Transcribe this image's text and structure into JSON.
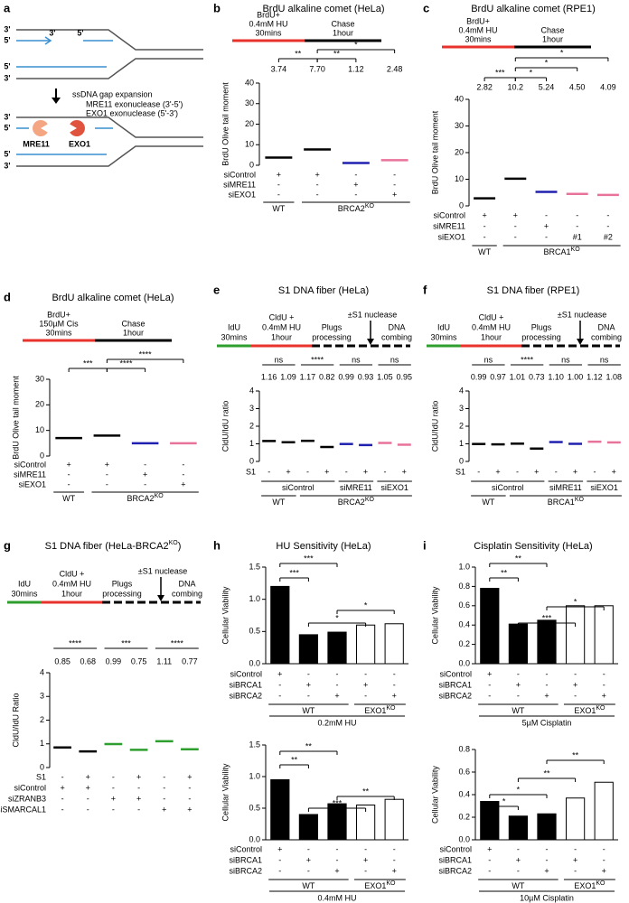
{
  "panels": [
    {
      "type": "schematic",
      "letter": "a",
      "caption": "ssDNA gap expansion",
      "line1": "MRE11 exonuclease (3'-5')",
      "line2": "EXO1 exonuclease (5'-3')",
      "enzymes": [
        "MRE11",
        "EXO1"
      ],
      "ends": [
        "3'",
        "5'",
        "3'",
        "5'",
        "5'",
        "3'",
        "3'",
        "5'",
        "5'",
        "3'"
      ]
    },
    {
      "type": "dot",
      "letter": "b",
      "title": "BrdU alkaline comet (HeLa)",
      "protocol": [
        "BrdU+",
        "0.4mM HU",
        "30mins",
        "Chase",
        "1hour"
      ],
      "ylabel": "BrdU Olive tail moment",
      "ylim": [
        0,
        40
      ],
      "yticks": [
        0,
        10,
        20,
        30,
        40
      ],
      "means": [
        3.74,
        7.7,
        1.12,
        2.48
      ],
      "value_labels": [
        "3.74",
        "7.70",
        "1.12",
        "2.48"
      ],
      "colors": [
        "#000000",
        "#000000",
        "#2020b0",
        "#e8739a"
      ],
      "sig": [
        "**",
        "**",
        "*"
      ],
      "rows": [
        {
          "name": "siControl",
          "marks": [
            "+",
            "+",
            "-",
            "-"
          ]
        },
        {
          "name": "siMRE11",
          "marks": [
            "-",
            "-",
            "+",
            "-"
          ]
        },
        {
          "name": "siEXO1",
          "marks": [
            "-",
            "-",
            "-",
            "+"
          ]
        }
      ],
      "tiers": [
        [
          {
            "label": "WT"
          },
          {
            "label": "BRCA2",
            "sup": "KO"
          }
        ]
      ]
    },
    {
      "type": "dot",
      "letter": "c",
      "title": "BrdU alkaline comet (RPE1)",
      "protocol": [
        "BrdU+",
        "0.4mM HU",
        "30mins",
        "Chase",
        "1hour"
      ],
      "ylabel": "BrdU Olive tail moment",
      "ylim": [
        0,
        40
      ],
      "yticks": [
        0,
        10,
        20,
        30,
        40
      ],
      "means": [
        2.82,
        10.2,
        5.24,
        4.5,
        4.09
      ],
      "value_labels": [
        "2.82",
        "10.2",
        "5.24",
        "4.50",
        "4.09"
      ],
      "colors": [
        "#000000",
        "#000000",
        "#2020b0",
        "#e8739a",
        "#e8739a"
      ],
      "sig": [
        "***",
        "*",
        "*",
        "*"
      ],
      "rows": [
        {
          "name": "siControl",
          "marks": [
            "+",
            "+",
            "-",
            "-",
            "-"
          ]
        },
        {
          "name": "siMRE11",
          "marks": [
            "-",
            "-",
            "+",
            "-",
            "-"
          ]
        },
        {
          "name": "siEXO1",
          "marks": [
            "-",
            "-",
            "-",
            "#1",
            "#2"
          ]
        }
      ],
      "tiers": [
        [
          {
            "label": "WT"
          },
          {
            "label": "BRCA1",
            "sup": "KO"
          }
        ]
      ]
    },
    {
      "type": "dot",
      "letter": "d",
      "title": "BrdU alkaline comet (HeLa)",
      "protocol": [
        "BrdU+",
        "150µM Cis",
        "30mins",
        "Chase",
        "1hour"
      ],
      "ylabel": "BrdU Olive tail moment",
      "ylim": [
        0,
        30
      ],
      "yticks": [
        0,
        10,
        20,
        30
      ],
      "means": [
        7,
        8,
        5,
        5
      ],
      "colors": [
        "#000000",
        "#000000",
        "#2020b0",
        "#e8739a"
      ],
      "sig": [
        "***",
        "****",
        "****"
      ],
      "rows": [
        {
          "name": "siControl",
          "marks": [
            "+",
            "+",
            "-",
            "-"
          ]
        },
        {
          "name": "siMRE11",
          "marks": [
            "-",
            "-",
            "+",
            "-"
          ]
        },
        {
          "name": "siEXO1",
          "marks": [
            "-",
            "-",
            "-",
            "+"
          ]
        }
      ],
      "tiers": [
        [
          {
            "label": "WT"
          },
          {
            "label": "BRCA2",
            "sup": "KO"
          }
        ]
      ]
    },
    {
      "type": "dot",
      "letter": "e",
      "title": "S1 DNA fiber (HeLa)",
      "protocol": [
        "IdU",
        "30mins",
        "CldU +",
        "0.4mM HU",
        "1hour",
        "Plugs",
        "processing",
        "±S1 nuclease",
        "DNA",
        "combing"
      ],
      "ylabel": "CldU/IdU ratio",
      "ylim": [
        0,
        4
      ],
      "yticks": [
        0,
        1,
        2,
        3,
        4
      ],
      "means": [
        1.16,
        1.09,
        1.17,
        0.82,
        0.99,
        0.93,
        1.05,
        0.95
      ],
      "value_labels": [
        "1.16",
        "1.09",
        "1.17",
        "0.82",
        "0.99",
        "0.93",
        "1.05",
        "0.95"
      ],
      "colors": [
        "#000000",
        "#000000",
        "#000000",
        "#000000",
        "#2020b0",
        "#2020b0",
        "#e8739a",
        "#e8739a"
      ],
      "sig": [
        "ns",
        "****",
        "ns",
        "ns"
      ],
      "rows": [
        {
          "name": "S1",
          "marks": [
            "-",
            "+",
            "-",
            "+",
            "-",
            "+",
            "-",
            "+"
          ]
        }
      ],
      "tiers": [
        [
          {
            "label": "siControl"
          },
          {
            "label": "siMRE11"
          },
          {
            "label": "siEXO1"
          }
        ],
        [
          {
            "label": "WT"
          },
          {
            "label": "BRCA2",
            "sup": "KO"
          }
        ]
      ]
    },
    {
      "type": "dot",
      "letter": "f",
      "title": "S1 DNA fiber (RPE1)",
      "protocol": [
        "IdU",
        "30mins",
        "CldU +",
        "0.4mM HU",
        "1hour",
        "Plugs",
        "processing",
        "±S1 nuclease",
        "DNA",
        "combing"
      ],
      "ylabel": "CldU/IdU ratio",
      "ylim": [
        0,
        4
      ],
      "yticks": [
        0,
        1,
        2,
        3,
        4
      ],
      "means": [
        0.99,
        0.97,
        1.01,
        0.73,
        1.1,
        1.0,
        1.12,
        1.08
      ],
      "value_labels": [
        "0.99",
        "0.97",
        "1.01",
        "0.73",
        "1.10",
        "1.00",
        "1.12",
        "1.08"
      ],
      "colors": [
        "#000000",
        "#000000",
        "#000000",
        "#000000",
        "#2020b0",
        "#2020b0",
        "#e8739a",
        "#e8739a"
      ],
      "sig": [
        "ns",
        "****",
        "ns",
        "ns"
      ],
      "rows": [
        {
          "name": "S1",
          "marks": [
            "-",
            "+",
            "-",
            "+",
            "-",
            "+",
            "-",
            "+"
          ]
        }
      ],
      "tiers": [
        [
          {
            "label": "siControl"
          },
          {
            "label": "siMRE11"
          },
          {
            "label": "siEXO1"
          }
        ],
        [
          {
            "label": "WT"
          },
          {
            "label": "BRCA1",
            "sup": "KO"
          }
        ]
      ]
    },
    {
      "type": "dot",
      "letter": "g",
      "title": "S1 DNA fiber (HeLa-BRCA2",
      "title_sup": "KO",
      "title_end": ")",
      "protocol": [
        "IdU",
        "30mins",
        "CldU +",
        "0.4mM HU",
        "1hour",
        "Plugs",
        "processing",
        "±S1 nuclease",
        "DNA",
        "combing"
      ],
      "ylabel": "CldU/IdU Ratio",
      "ylim": [
        0,
        4
      ],
      "yticks": [
        0,
        1,
        2,
        3,
        4
      ],
      "means": [
        0.85,
        0.68,
        0.99,
        0.75,
        1.11,
        0.77
      ],
      "value_labels": [
        "0.85",
        "0.68",
        "0.99",
        "0.75",
        "1.11",
        "0.77"
      ],
      "colors": [
        "#000000",
        "#000000",
        "#2e9e2e",
        "#2e9e2e",
        "#2e9e2e",
        "#2e9e2e"
      ],
      "sig": [
        "****",
        "***",
        "****"
      ],
      "rows": [
        {
          "name": "S1",
          "marks": [
            "-",
            "+",
            "-",
            "+",
            "-",
            "+"
          ]
        },
        {
          "name": "siControl",
          "marks": [
            "+",
            "+",
            "-",
            "-",
            "-",
            "-"
          ]
        },
        {
          "name": "siZRANB3",
          "marks": [
            "-",
            "-",
            "+",
            "+",
            "-",
            "-"
          ]
        },
        {
          "name": "siSMARCAL1",
          "marks": [
            "-",
            "-",
            "-",
            "-",
            "+",
            "+"
          ]
        }
      ],
      "tiers": []
    },
    {
      "type": "bar",
      "letter": "h",
      "title": "HU Sensitivity (HeLa)",
      "colors": [
        "#000000",
        "#000000",
        "#000000",
        "#ffffff",
        "#ffffff"
      ],
      "charts": [
        {
          "ylabel": "Cellular Viability",
          "ylim": [
            0,
            1.5
          ],
          "yticks": [
            {
              "value": 0,
              "label": "0.0"
            },
            0.5,
            {
              "value": 1,
              "label": "1.0"
            },
            1.5
          ],
          "values": [
            1.2,
            0.45,
            0.49,
            0.6,
            0.62
          ],
          "sig": [
            "***",
            "***",
            "*",
            "*"
          ],
          "rows": [
            {
              "name": "siControl",
              "marks": [
                "+",
                "-",
                "-",
                "-",
                "-"
              ]
            },
            {
              "name": "siBRCA1",
              "marks": [
                "-",
                "+",
                "-",
                "+",
                "-"
              ]
            },
            {
              "name": "siBRCA2",
              "marks": [
                "-",
                "-",
                "+",
                "-",
                "+"
              ]
            }
          ],
          "tiers": [
            [
              {
                "label": "WT"
              },
              {
                "label": "EXO1",
                "sup": "KO"
              }
            ]
          ],
          "condition": "0.2mM HU"
        },
        {
          "ylabel": "Cellular Viability",
          "ylim": [
            0,
            1.5
          ],
          "yticks": [
            {
              "value": 0,
              "label": "0.0"
            },
            0.5,
            {
              "value": 1,
              "label": "1.0"
            },
            1.5
          ],
          "values": [
            0.95,
            0.4,
            0.57,
            0.55,
            0.64
          ],
          "sig": [
            "**",
            "**",
            "***",
            "**"
          ],
          "rows": [
            {
              "name": "siControl",
              "marks": [
                "+",
                "-",
                "-",
                "-",
                "-"
              ]
            },
            {
              "name": "siBRCA1",
              "marks": [
                "-",
                "+",
                "-",
                "+",
                "-"
              ]
            },
            {
              "name": "siBRCA2",
              "marks": [
                "-",
                "-",
                "+",
                "-",
                "+"
              ]
            }
          ],
          "tiers": [
            [
              {
                "label": "WT"
              },
              {
                "label": "EXO1",
                "sup": "KO"
              }
            ]
          ],
          "condition": "0.4mM HU"
        }
      ]
    },
    {
      "type": "bar",
      "letter": "i",
      "title": "Cisplatin Sensitivity (HeLa)",
      "colors": [
        "#000000",
        "#000000",
        "#000000",
        "#ffffff",
        "#ffffff"
      ],
      "charts": [
        {
          "ylabel": "Cellular Viability",
          "ylim": [
            0,
            1
          ],
          "yticks": [
            {
              "value": 0,
              "label": "0.0"
            },
            0.2,
            0.4,
            0.6,
            0.8,
            {
              "value": 1,
              "label": "1.0"
            }
          ],
          "values": [
            0.78,
            0.41,
            0.45,
            0.6,
            0.6
          ],
          "sig": [
            "**",
            "**",
            "***",
            "*"
          ],
          "rows": [
            {
              "name": "siControl",
              "marks": [
                "+",
                "-",
                "-",
                "-",
                "-"
              ]
            },
            {
              "name": "siBRCA1",
              "marks": [
                "-",
                "+",
                "-",
                "+",
                "-"
              ]
            },
            {
              "name": "siBRCA2",
              "marks": [
                "-",
                "-",
                "+",
                "-",
                "+"
              ]
            }
          ],
          "tiers": [
            [
              {
                "label": "WT"
              },
              {
                "label": "EXO1",
                "sup": "KO"
              }
            ]
          ],
          "condition": "5µM Cisplatin"
        },
        {
          "ylabel": "Cellular Viability",
          "ylim": [
            0,
            0.8
          ],
          "yticks": [
            {
              "value": 0,
              "label": "0.0"
            },
            0.2,
            0.4,
            0.6,
            0.8
          ],
          "values": [
            0.34,
            0.21,
            0.23,
            0.37,
            0.51
          ],
          "sig": [
            "*",
            "*",
            "**",
            "**"
          ],
          "rows": [
            {
              "name": "siControl",
              "marks": [
                "+",
                "-",
                "-",
                "-",
                "-"
              ]
            },
            {
              "name": "siBRCA1",
              "marks": [
                "-",
                "+",
                "-",
                "+",
                "-"
              ]
            },
            {
              "name": "siBRCA2",
              "marks": [
                "-",
                "-",
                "+",
                "-",
                "+"
              ]
            }
          ],
          "tiers": [
            [
              {
                "label": "WT"
              },
              {
                "label": "EXO1",
                "sup": "KO"
              }
            ]
          ],
          "condition": "10µM Cisplatin"
        }
      ]
    }
  ]
}
